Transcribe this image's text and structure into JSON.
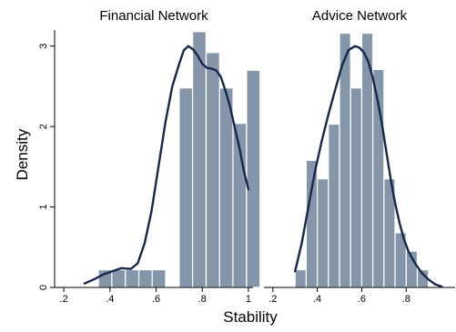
{
  "figure": {
    "xlabel": "Stability",
    "ylabel": "Density"
  },
  "colors": {
    "bar_fill": "#8596ab",
    "bar_edge": "#ffffff",
    "density_line": "#17264b",
    "axis": "#000000"
  },
  "chart_data": [
    {
      "type": "bar",
      "title": "Financial Network",
      "xlim": [
        0.16,
        1.02
      ],
      "ylim": [
        0,
        3.2
      ],
      "xticks": [
        ".2",
        ".4",
        ".6",
        ".8",
        "1"
      ],
      "xtick_values": [
        0.2,
        0.4,
        0.6,
        0.8,
        1.0
      ],
      "yticks": [
        "0",
        "1",
        "2",
        "3"
      ],
      "ytick_values": [
        0,
        1,
        2,
        3
      ],
      "bin_width": 0.05833,
      "bars": [
        {
          "x0": 0.35,
          "value": 0.22
        },
        {
          "x0": 0.408,
          "value": 0.22
        },
        {
          "x0": 0.467,
          "value": 0.22
        },
        {
          "x0": 0.525,
          "value": 0.22
        },
        {
          "x0": 0.583,
          "value": 0.22
        },
        {
          "x0": 0.642,
          "value": 0.0
        },
        {
          "x0": 0.7,
          "value": 2.48
        },
        {
          "x0": 0.758,
          "value": 3.18
        },
        {
          "x0": 0.817,
          "value": 2.92
        },
        {
          "x0": 0.875,
          "value": 2.48
        },
        {
          "x0": 0.933,
          "value": 2.04
        },
        {
          "x0": 0.992,
          "value": 2.7
        }
      ],
      "density": {
        "x": [
          0.29,
          0.33,
          0.37,
          0.41,
          0.45,
          0.49,
          0.52,
          0.55,
          0.58,
          0.61,
          0.64,
          0.67,
          0.7,
          0.72,
          0.74,
          0.76,
          0.78,
          0.8,
          0.82,
          0.84,
          0.86,
          0.88,
          0.9,
          0.92,
          0.94,
          0.96,
          0.98,
          1.0
        ],
        "y": [
          0.05,
          0.1,
          0.16,
          0.2,
          0.24,
          0.23,
          0.3,
          0.55,
          0.95,
          1.5,
          2.05,
          2.5,
          2.78,
          2.95,
          3.0,
          2.96,
          2.88,
          2.78,
          2.73,
          2.72,
          2.7,
          2.62,
          2.45,
          2.25,
          2.0,
          1.75,
          1.45,
          1.22
        ]
      }
    },
    {
      "type": "bar",
      "title": "Advice Network",
      "xlim": [
        0.16,
        1.02
      ],
      "ylim": [
        0,
        3.2
      ],
      "xticks": [
        ".2",
        ".4",
        ".6",
        ".8"
      ],
      "xtick_values": [
        0.2,
        0.4,
        0.6,
        0.8
      ],
      "yticks": [],
      "ytick_values": [],
      "bin_width": 0.05,
      "bars": [
        {
          "x0": 0.3,
          "value": 0.22
        },
        {
          "x0": 0.35,
          "value": 1.58
        },
        {
          "x0": 0.4,
          "value": 1.35
        },
        {
          "x0": 0.45,
          "value": 2.03
        },
        {
          "x0": 0.5,
          "value": 3.16
        },
        {
          "x0": 0.55,
          "value": 2.48
        },
        {
          "x0": 0.6,
          "value": 3.16
        },
        {
          "x0": 0.65,
          "value": 2.71
        },
        {
          "x0": 0.7,
          "value": 1.35
        },
        {
          "x0": 0.75,
          "value": 0.68
        },
        {
          "x0": 0.8,
          "value": 0.45
        },
        {
          "x0": 0.85,
          "value": 0.22
        }
      ],
      "density": {
        "x": [
          0.3,
          0.33,
          0.36,
          0.39,
          0.42,
          0.45,
          0.48,
          0.51,
          0.54,
          0.57,
          0.59,
          0.61,
          0.63,
          0.65,
          0.67,
          0.69,
          0.71,
          0.73,
          0.75,
          0.77,
          0.79,
          0.81,
          0.84,
          0.87,
          0.9,
          0.93,
          0.96
        ],
        "y": [
          0.2,
          0.55,
          1.0,
          1.45,
          1.82,
          2.15,
          2.45,
          2.75,
          2.95,
          3.0,
          2.98,
          2.92,
          2.8,
          2.6,
          2.35,
          2.05,
          1.7,
          1.35,
          1.05,
          0.8,
          0.6,
          0.45,
          0.3,
          0.18,
          0.1,
          0.04,
          0.01
        ]
      }
    }
  ]
}
